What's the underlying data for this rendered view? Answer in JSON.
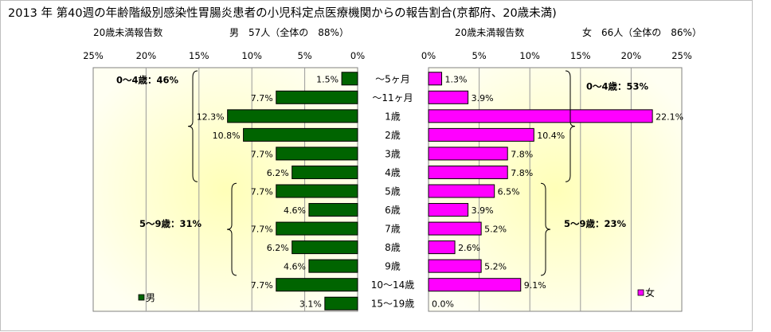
{
  "chart_data": {
    "type": "bar",
    "orientation": "horizontal",
    "layout": "population-pyramid",
    "title": "2013 年 第40週の年齢階級別感染性胃腸炎患者の小児科定点医療機関からの報告割合(京都府、20歳未満)",
    "categories": [
      "～5ヶ月",
      "～11ヶ月",
      "1歳",
      "2歳",
      "3歳",
      "4歳",
      "5歳",
      "6歳",
      "7歳",
      "8歳",
      "9歳",
      "10～14歳",
      "15～19歳"
    ],
    "series": [
      {
        "name": "男",
        "subtitle_left": "20歳未満報告数",
        "subtitle_right": "男　57人（全体の　88%）",
        "values": [
          1.5,
          7.7,
          12.3,
          10.8,
          7.7,
          6.2,
          7.7,
          4.6,
          7.7,
          6.2,
          4.6,
          7.7,
          3.1
        ],
        "labels": [
          "1.5%",
          "7.7%",
          "12.3%",
          "10.8%",
          "7.7%",
          "6.2%",
          "7.7%",
          "4.6%",
          "7.7%",
          "6.2%",
          "4.6%",
          "7.7%",
          "3.1%"
        ],
        "axis_ticks": [
          "25%",
          "20%",
          "15%",
          "10%",
          "5%",
          "0%"
        ],
        "xlim": [
          25,
          0
        ],
        "color": "#006400",
        "groups": [
          {
            "label": "0～4歳：46%",
            "from": 0,
            "to": 5
          },
          {
            "label": "5～9歳：31%",
            "from": 6,
            "to": 10
          }
        ]
      },
      {
        "name": "女",
        "subtitle_left": "20歳未満報告数",
        "subtitle_right": "女　66人（全体の　86%）",
        "values": [
          1.3,
          3.9,
          22.1,
          10.4,
          7.8,
          7.8,
          6.5,
          3.9,
          5.2,
          2.6,
          5.2,
          9.1,
          0.0
        ],
        "labels": [
          "1.3%",
          "3.9%",
          "22.1%",
          "10.4%",
          "7.8%",
          "7.8%",
          "6.5%",
          "3.9%",
          "5.2%",
          "2.6%",
          "5.2%",
          "9.1%",
          "0.0%"
        ],
        "axis_ticks": [
          "0%",
          "5%",
          "10%",
          "15%",
          "20%",
          "25%"
        ],
        "xlim": [
          0,
          25
        ],
        "color": "#FF00FF",
        "groups": [
          {
            "label": "0～4歳：53%",
            "from": 0,
            "to": 5
          },
          {
            "label": "5～9歳：23%",
            "from": 6,
            "to": 10
          }
        ]
      }
    ],
    "grid": true,
    "legend": "bottom-left",
    "plot_background": "#FFFFE0"
  }
}
